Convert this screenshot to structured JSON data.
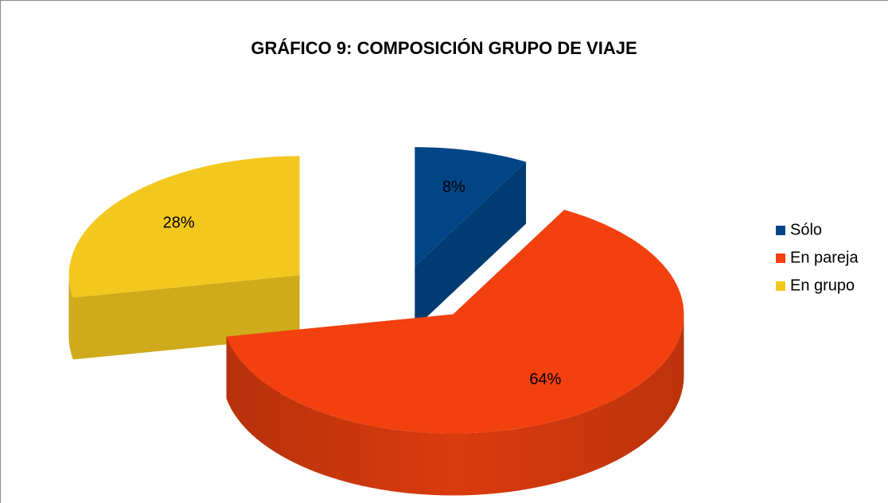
{
  "chart_data": {
    "type": "pie3d",
    "title": "GRÁFICO 9: COMPOSICIÓN GRUPO DE VIAJE",
    "categories": [
      "Sólo",
      "En pareja",
      "En grupo"
    ],
    "values": [
      8,
      64,
      28
    ],
    "value_labels": [
      "8%",
      "64%",
      "28%"
    ],
    "colors": [
      "#004586",
      "#f2410f",
      "#f3c81e"
    ],
    "legend": "right"
  }
}
